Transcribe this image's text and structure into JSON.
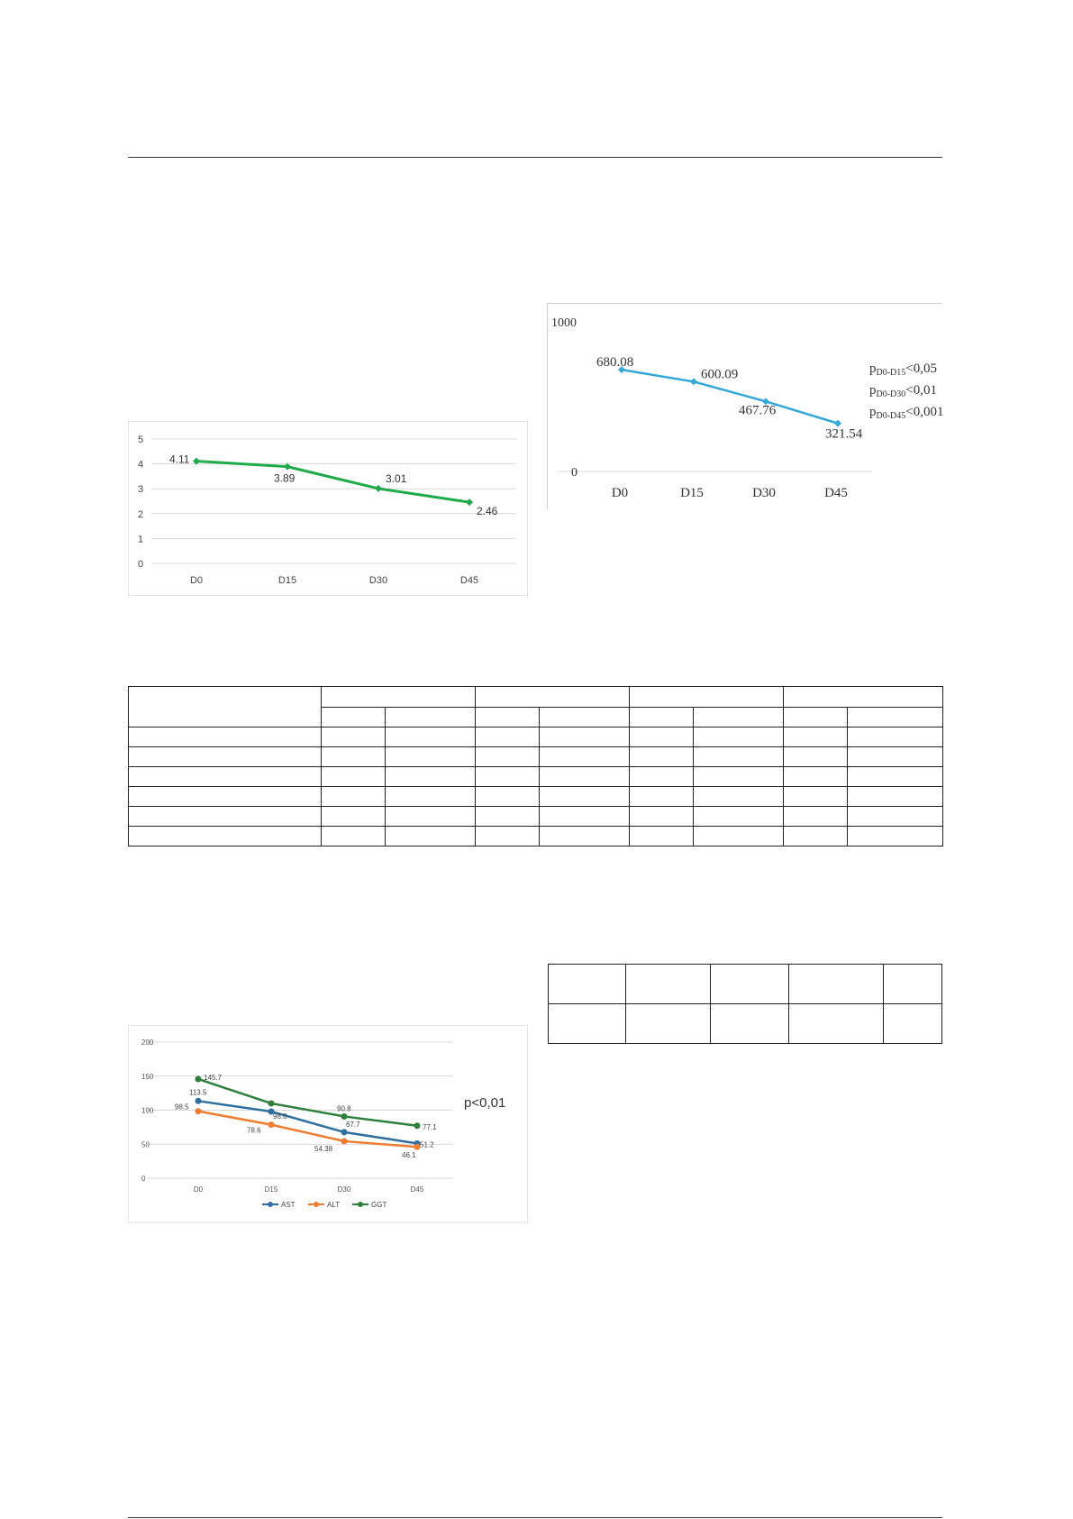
{
  "colors": {
    "green_series": "#1faa4a",
    "blue_series": "#35a8d8",
    "ast": "#2f6f9f",
    "alt": "#ee7d31",
    "ggt": "#2d7f3a",
    "gridline": "#d9d9d9"
  },
  "chart_data": [
    {
      "type": "line",
      "categories": [
        "D0",
        "D15",
        "D30",
        "D45"
      ],
      "series": [
        {
          "values": [
            4.11,
            3.89,
            3.01,
            2.46
          ]
        }
      ],
      "data_labels": [
        "4.11",
        "3.89",
        "3.01",
        "2.46"
      ],
      "y_ticks": [
        "0",
        "1",
        "2",
        "3",
        "4",
        "5"
      ],
      "ylim": [
        0,
        5
      ],
      "grid": true,
      "marker": "diamond"
    },
    {
      "type": "line",
      "categories": [
        "D0",
        "D15",
        "D30",
        "D45"
      ],
      "series": [
        {
          "values": [
            680.08,
            600.09,
            467.76,
            321.54
          ]
        }
      ],
      "data_labels": [
        "680.08",
        "600.09",
        "467.76",
        "321.54"
      ],
      "y_ticks": [
        "0",
        "1000"
      ],
      "ylim": [
        0,
        1000
      ],
      "grid": false,
      "annotations": [
        {
          "sub": "D0-D15",
          "rel": "<0,05"
        },
        {
          "sub": "D0-D30",
          "rel": "<0,01"
        },
        {
          "sub": "D0-D45",
          "rel": "<0,001"
        }
      ]
    },
    {
      "type": "line",
      "categories": [
        "D0",
        "D15",
        "D30",
        "D45"
      ],
      "series": [
        {
          "name": "AST",
          "values": [
            113.5,
            98.0,
            67.7,
            51.2
          ],
          "labels": [
            "113.5",
            "98.0",
            "67.7",
            "51.2"
          ]
        },
        {
          "name": "ALT",
          "values": [
            98.5,
            78.6,
            54.38,
            46.1
          ],
          "labels": [
            "98.5",
            "78.6",
            "54.38",
            "46.1"
          ]
        },
        {
          "name": "GGT",
          "values": [
            145.7,
            110.0,
            90.8,
            77.1
          ],
          "labels": [
            "145.7",
            "",
            "90.8",
            "77.1"
          ]
        }
      ],
      "y_ticks": [
        "0",
        "50",
        "100",
        "150",
        "200"
      ],
      "ylim": [
        0,
        200
      ],
      "grid": true,
      "legend": "bottom",
      "annotation": "p<0,01"
    }
  ],
  "tables": {
    "table1": {
      "rows": 7,
      "cols": 9
    },
    "table2": {
      "rows": 2,
      "cols": 5
    }
  }
}
